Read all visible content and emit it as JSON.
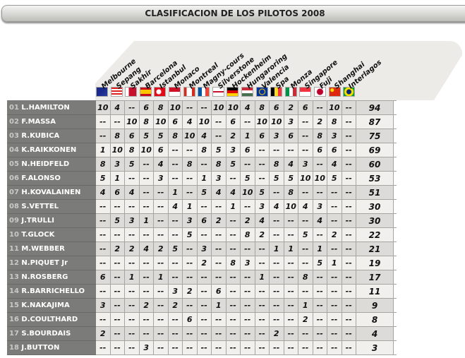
{
  "title": "CLASIFICACION DE LOS PILOTOS 2008",
  "races": [
    {
      "name": "Melbourne",
      "flag": "australia"
    },
    {
      "name": "Sepang",
      "flag": "malaysia"
    },
    {
      "name": "Sakhir",
      "flag": "bahrain"
    },
    {
      "name": "Barcelona",
      "flag": "spain"
    },
    {
      "name": "Istanbul",
      "flag": "turkey"
    },
    {
      "name": "Monaco",
      "flag": "monaco"
    },
    {
      "name": "Montreal",
      "flag": "canada"
    },
    {
      "name": "Magny-cours",
      "flag": "france"
    },
    {
      "name": "Silverstone",
      "flag": "uk"
    },
    {
      "name": "Hockenheim",
      "flag": "germany"
    },
    {
      "name": "Hungaroring",
      "flag": "hungary"
    },
    {
      "name": "Valencia",
      "flag": "europe"
    },
    {
      "name": "Spa",
      "flag": "belgium"
    },
    {
      "name": "Monza",
      "flag": "italy"
    },
    {
      "name": "Singapore",
      "flag": "singapore"
    },
    {
      "name": "Fuji",
      "flag": "japan"
    },
    {
      "name": "Shanghai",
      "flag": "china"
    },
    {
      "name": "Interlagos",
      "flag": "brazil"
    }
  ],
  "drivers": [
    {
      "pos": "01",
      "name": "L.HAMILTON",
      "points": [
        "10",
        "4",
        "--",
        "6",
        "8",
        "10",
        "--",
        "--",
        "10",
        "10",
        "4",
        "8",
        "6",
        "2",
        "6",
        "--",
        "10",
        "--"
      ],
      "total": "94"
    },
    {
      "pos": "02",
      "name": "F.MASSA",
      "points": [
        "--",
        "--",
        "10",
        "8",
        "10",
        "6",
        "4",
        "10",
        "--",
        "6",
        "--",
        "10",
        "10",
        "3",
        "--",
        "2",
        "8",
        "--"
      ],
      "total": "87"
    },
    {
      "pos": "03",
      "name": "R.KUBICA",
      "points": [
        "--",
        "8",
        "6",
        "5",
        "5",
        "8",
        "10",
        "4",
        "--",
        "2",
        "1",
        "6",
        "3",
        "6",
        "--",
        "8",
        "3",
        "--"
      ],
      "total": "75"
    },
    {
      "pos": "04",
      "name": "K.RAIKKONEN",
      "points": [
        "1",
        "10",
        "8",
        "10",
        "6",
        "--",
        "--",
        "8",
        "5",
        "3",
        "6",
        "--",
        "--",
        "--",
        "--",
        "6",
        "6",
        "--"
      ],
      "total": "69"
    },
    {
      "pos": "05",
      "name": "N.HEIDFELD",
      "points": [
        "8",
        "3",
        "5",
        "--",
        "4",
        "--",
        "8",
        "--",
        "8",
        "5",
        "--",
        "--",
        "8",
        "4",
        "3",
        "--",
        "4",
        "--"
      ],
      "total": "60"
    },
    {
      "pos": "06",
      "name": "F.ALONSO",
      "points": [
        "5",
        "1",
        "--",
        "--",
        "3",
        "--",
        "--",
        "1",
        "3",
        "--",
        "5",
        "--",
        "5",
        "5",
        "10",
        "10",
        "5",
        "--"
      ],
      "total": "53"
    },
    {
      "pos": "07",
      "name": "H.KOVALAINEN",
      "points": [
        "4",
        "6",
        "4",
        "--",
        "--",
        "1",
        "--",
        "5",
        "4",
        "4",
        "10",
        "5",
        "--",
        "8",
        "--",
        "--",
        "--",
        "--"
      ],
      "total": "51"
    },
    {
      "pos": "08",
      "name": "S.VETTEL",
      "points": [
        "--",
        "--",
        "--",
        "--",
        "--",
        "4",
        "1",
        "--",
        "--",
        "1",
        "--",
        "3",
        "4",
        "10",
        "4",
        "3",
        "--",
        "--"
      ],
      "total": "30"
    },
    {
      "pos": "09",
      "name": "J.TRULLI",
      "points": [
        "--",
        "5",
        "3",
        "1",
        "--",
        "--",
        "3",
        "6",
        "2",
        "--",
        "2",
        "4",
        "--",
        "--",
        "--",
        "4",
        "--",
        "--"
      ],
      "total": "30"
    },
    {
      "pos": "10",
      "name": "T.GLOCK",
      "points": [
        "--",
        "--",
        "--",
        "--",
        "--",
        "--",
        "5",
        "--",
        "--",
        "--",
        "8",
        "2",
        "--",
        "--",
        "5",
        "--",
        "2",
        "--"
      ],
      "total": "22"
    },
    {
      "pos": "11",
      "name": "M.WEBBER",
      "points": [
        "--",
        "2",
        "2",
        "4",
        "2",
        "5",
        "--",
        "3",
        "--",
        "--",
        "--",
        "--",
        "1",
        "1",
        "--",
        "1",
        "--",
        "--"
      ],
      "total": "21"
    },
    {
      "pos": "12",
      "name": "N.PIQUET Jr",
      "points": [
        "--",
        "--",
        "--",
        "--",
        "--",
        "--",
        "--",
        "2",
        "--",
        "8",
        "3",
        "--",
        "--",
        "--",
        "--",
        "5",
        "1",
        "--"
      ],
      "total": "19"
    },
    {
      "pos": "13",
      "name": "N.ROSBERG",
      "points": [
        "6",
        "--",
        "1",
        "--",
        "1",
        "--",
        "--",
        "--",
        "--",
        "--",
        "--",
        "1",
        "--",
        "--",
        "8",
        "--",
        "--",
        "--"
      ],
      "total": "17"
    },
    {
      "pos": "14",
      "name": "R.BARRICHELLO",
      "points": [
        "--",
        "--",
        "--",
        "--",
        "--",
        "3",
        "2",
        "--",
        "6",
        "--",
        "--",
        "--",
        "--",
        "--",
        "--",
        "--",
        "--",
        "--"
      ],
      "total": "11"
    },
    {
      "pos": "15",
      "name": "K.NAKAJIMA",
      "points": [
        "3",
        "--",
        "--",
        "2",
        "--",
        "2",
        "--",
        "--",
        "1",
        "--",
        "--",
        "--",
        "--",
        "--",
        "1",
        "--",
        "--",
        "--"
      ],
      "total": "9"
    },
    {
      "pos": "16",
      "name": "D.COULTHARD",
      "points": [
        "--",
        "--",
        "--",
        "--",
        "--",
        "--",
        "6",
        "--",
        "--",
        "--",
        "--",
        "--",
        "--",
        "--",
        "2",
        "--",
        "--",
        "--"
      ],
      "total": "8"
    },
    {
      "pos": "17",
      "name": "S.BOURDAIS",
      "points": [
        "2",
        "--",
        "--",
        "--",
        "--",
        "--",
        "--",
        "--",
        "--",
        "--",
        "--",
        "--",
        "2",
        "--",
        "--",
        "--",
        "--",
        "--"
      ],
      "total": "4"
    },
    {
      "pos": "18",
      "name": "J.BUTTON",
      "points": [
        "--",
        "--",
        "--",
        "3",
        "--",
        "--",
        "--",
        "--",
        "--",
        "--",
        "--",
        "--",
        "--",
        "--",
        "--",
        "--",
        "--",
        "--"
      ],
      "total": "3"
    }
  ]
}
